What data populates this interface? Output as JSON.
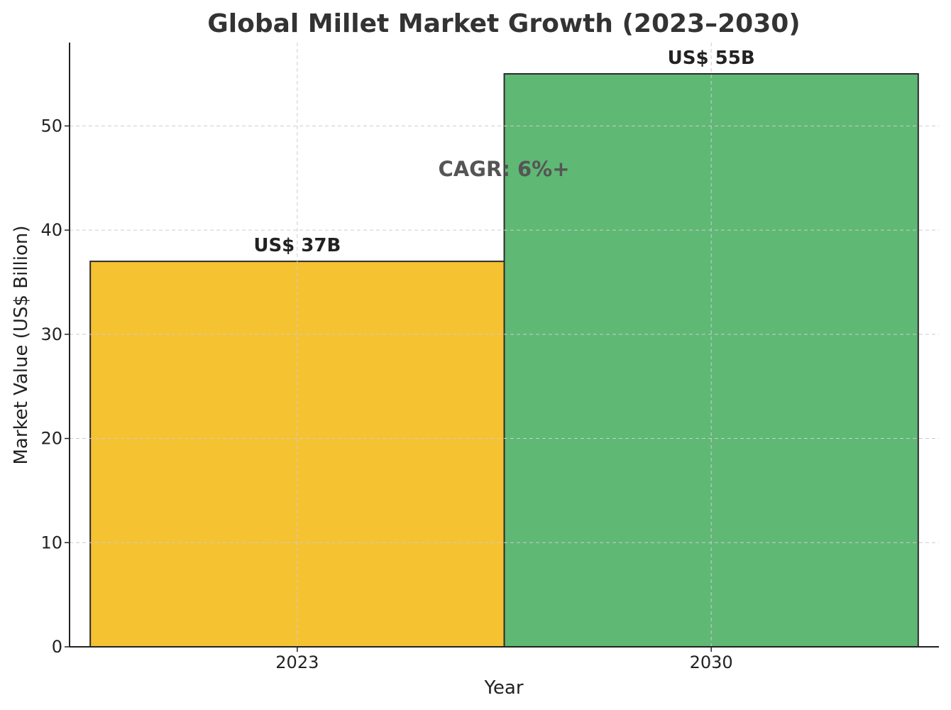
{
  "chart_data": {
    "type": "bar",
    "title": "Global Millet Market Growth (2023–2030)",
    "xlabel": "Year",
    "ylabel": "Market Value (US$ Billion)",
    "categories": [
      "2023",
      "2030"
    ],
    "values": [
      37,
      55
    ],
    "data_labels": [
      "US$ 37B",
      "US$ 55B"
    ],
    "bar_colors": [
      "#F5C232",
      "#5FB874"
    ],
    "ylim": [
      0,
      58
    ],
    "yticks": [
      0,
      10,
      20,
      30,
      40,
      50
    ],
    "grid": true,
    "annotation": "CAGR: 6%+"
  }
}
